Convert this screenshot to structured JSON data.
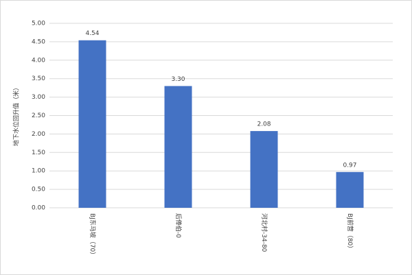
{
  "chart_data": {
    "type": "bar",
    "y_label": "地下水位回升值（米）",
    "categories": [
      "BJ东马坡（70）",
      "后俸伯-0",
      "河北村-34-80",
      "BJ前营（80）"
    ],
    "values": [
      4.54,
      3.3,
      2.08,
      0.97
    ],
    "value_labels": [
      "4.54",
      "3.30",
      "2.08",
      "0.97"
    ],
    "color": "#4472c4",
    "ylim": [
      0,
      5
    ],
    "yticks": [
      {
        "value": 0,
        "label": "0.00"
      },
      {
        "value": 0.5,
        "label": "0.50"
      },
      {
        "value": 1,
        "label": "1.00"
      },
      {
        "value": 1.5,
        "label": "1.50"
      },
      {
        "value": 2,
        "label": "2.00"
      },
      {
        "value": 2.5,
        "label": "2.50"
      },
      {
        "value": 3,
        "label": "3.00"
      },
      {
        "value": 3.5,
        "label": "3.50"
      },
      {
        "value": 4,
        "label": "4.00"
      },
      {
        "value": 4.5,
        "label": "4.50"
      },
      {
        "value": 5,
        "label": "5.00"
      }
    ],
    "grid": true
  }
}
